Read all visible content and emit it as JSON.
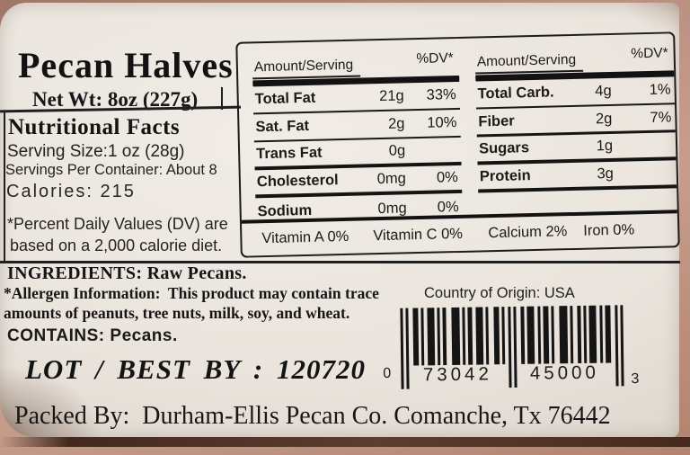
{
  "colors": {
    "ink": "#1b1b1b",
    "label_background": "#eae4dd",
    "photo_background": "#b5897a",
    "barcode_ink": "#141414"
  },
  "header": {
    "title": "Pecan Halves",
    "net_weight": "Net Wt: 8oz (227g)"
  },
  "facts_panel": {
    "title": "Nutritional Facts",
    "serving_size": "Serving Size:1 oz (28g)",
    "servings_per_container": "Servings Per Container: About 8",
    "calories": "Calories: 215",
    "footnote_line1": "*Percent Daily Values (DV) are",
    "footnote_line2": "based on a 2,000 calorie diet."
  },
  "nutrition_table": {
    "left": {
      "header_amount": "Amount/Serving",
      "header_dv": "%DV*",
      "rows": [
        {
          "name": "Total Fat",
          "amount": "21g",
          "dv": "33%"
        },
        {
          "name": "Sat. Fat",
          "amount": "2g",
          "dv": "10%"
        },
        {
          "name": "Trans Fat",
          "amount": "0g",
          "dv": ""
        },
        {
          "name": "Cholesterol",
          "amount": "0mg",
          "dv": "0%"
        },
        {
          "name": "Sodium",
          "amount": "0mg",
          "dv": "0%"
        }
      ]
    },
    "right": {
      "header_amount": "Amount/Serving",
      "header_dv": "%DV*",
      "rows": [
        {
          "name": "Total Carb.",
          "amount": "4g",
          "dv": "1%"
        },
        {
          "name": "Fiber",
          "amount": "2g",
          "dv": "7%"
        },
        {
          "name": "Sugars",
          "amount": "1g",
          "dv": ""
        },
        {
          "name": "Protein",
          "amount": "3g",
          "dv": ""
        }
      ]
    },
    "vitamins": [
      "Vitamin A 0%",
      "Vitamin C 0%",
      "Calcium 2%",
      "Iron 0%"
    ]
  },
  "info": {
    "ingredients": "INGREDIENTS: Raw Pecans.",
    "allergen_line1": "*Allergen Information:  This product may contain trace",
    "allergen_line2": "amounts of peanuts, tree nuts, milk, soy, and wheat.",
    "country_of_origin": "Country of Origin: USA",
    "contains": "CONTAINS: Pecans.",
    "lot_best_by": "LOT / BEST BY : 120720",
    "packed_by": "Packed By:  Durham-Ellis Pecan Co. Comanche, Tx 76442"
  },
  "barcode": {
    "number_system": "0",
    "left_digits": "73042",
    "right_digits": "45000",
    "check_digit": "3"
  }
}
